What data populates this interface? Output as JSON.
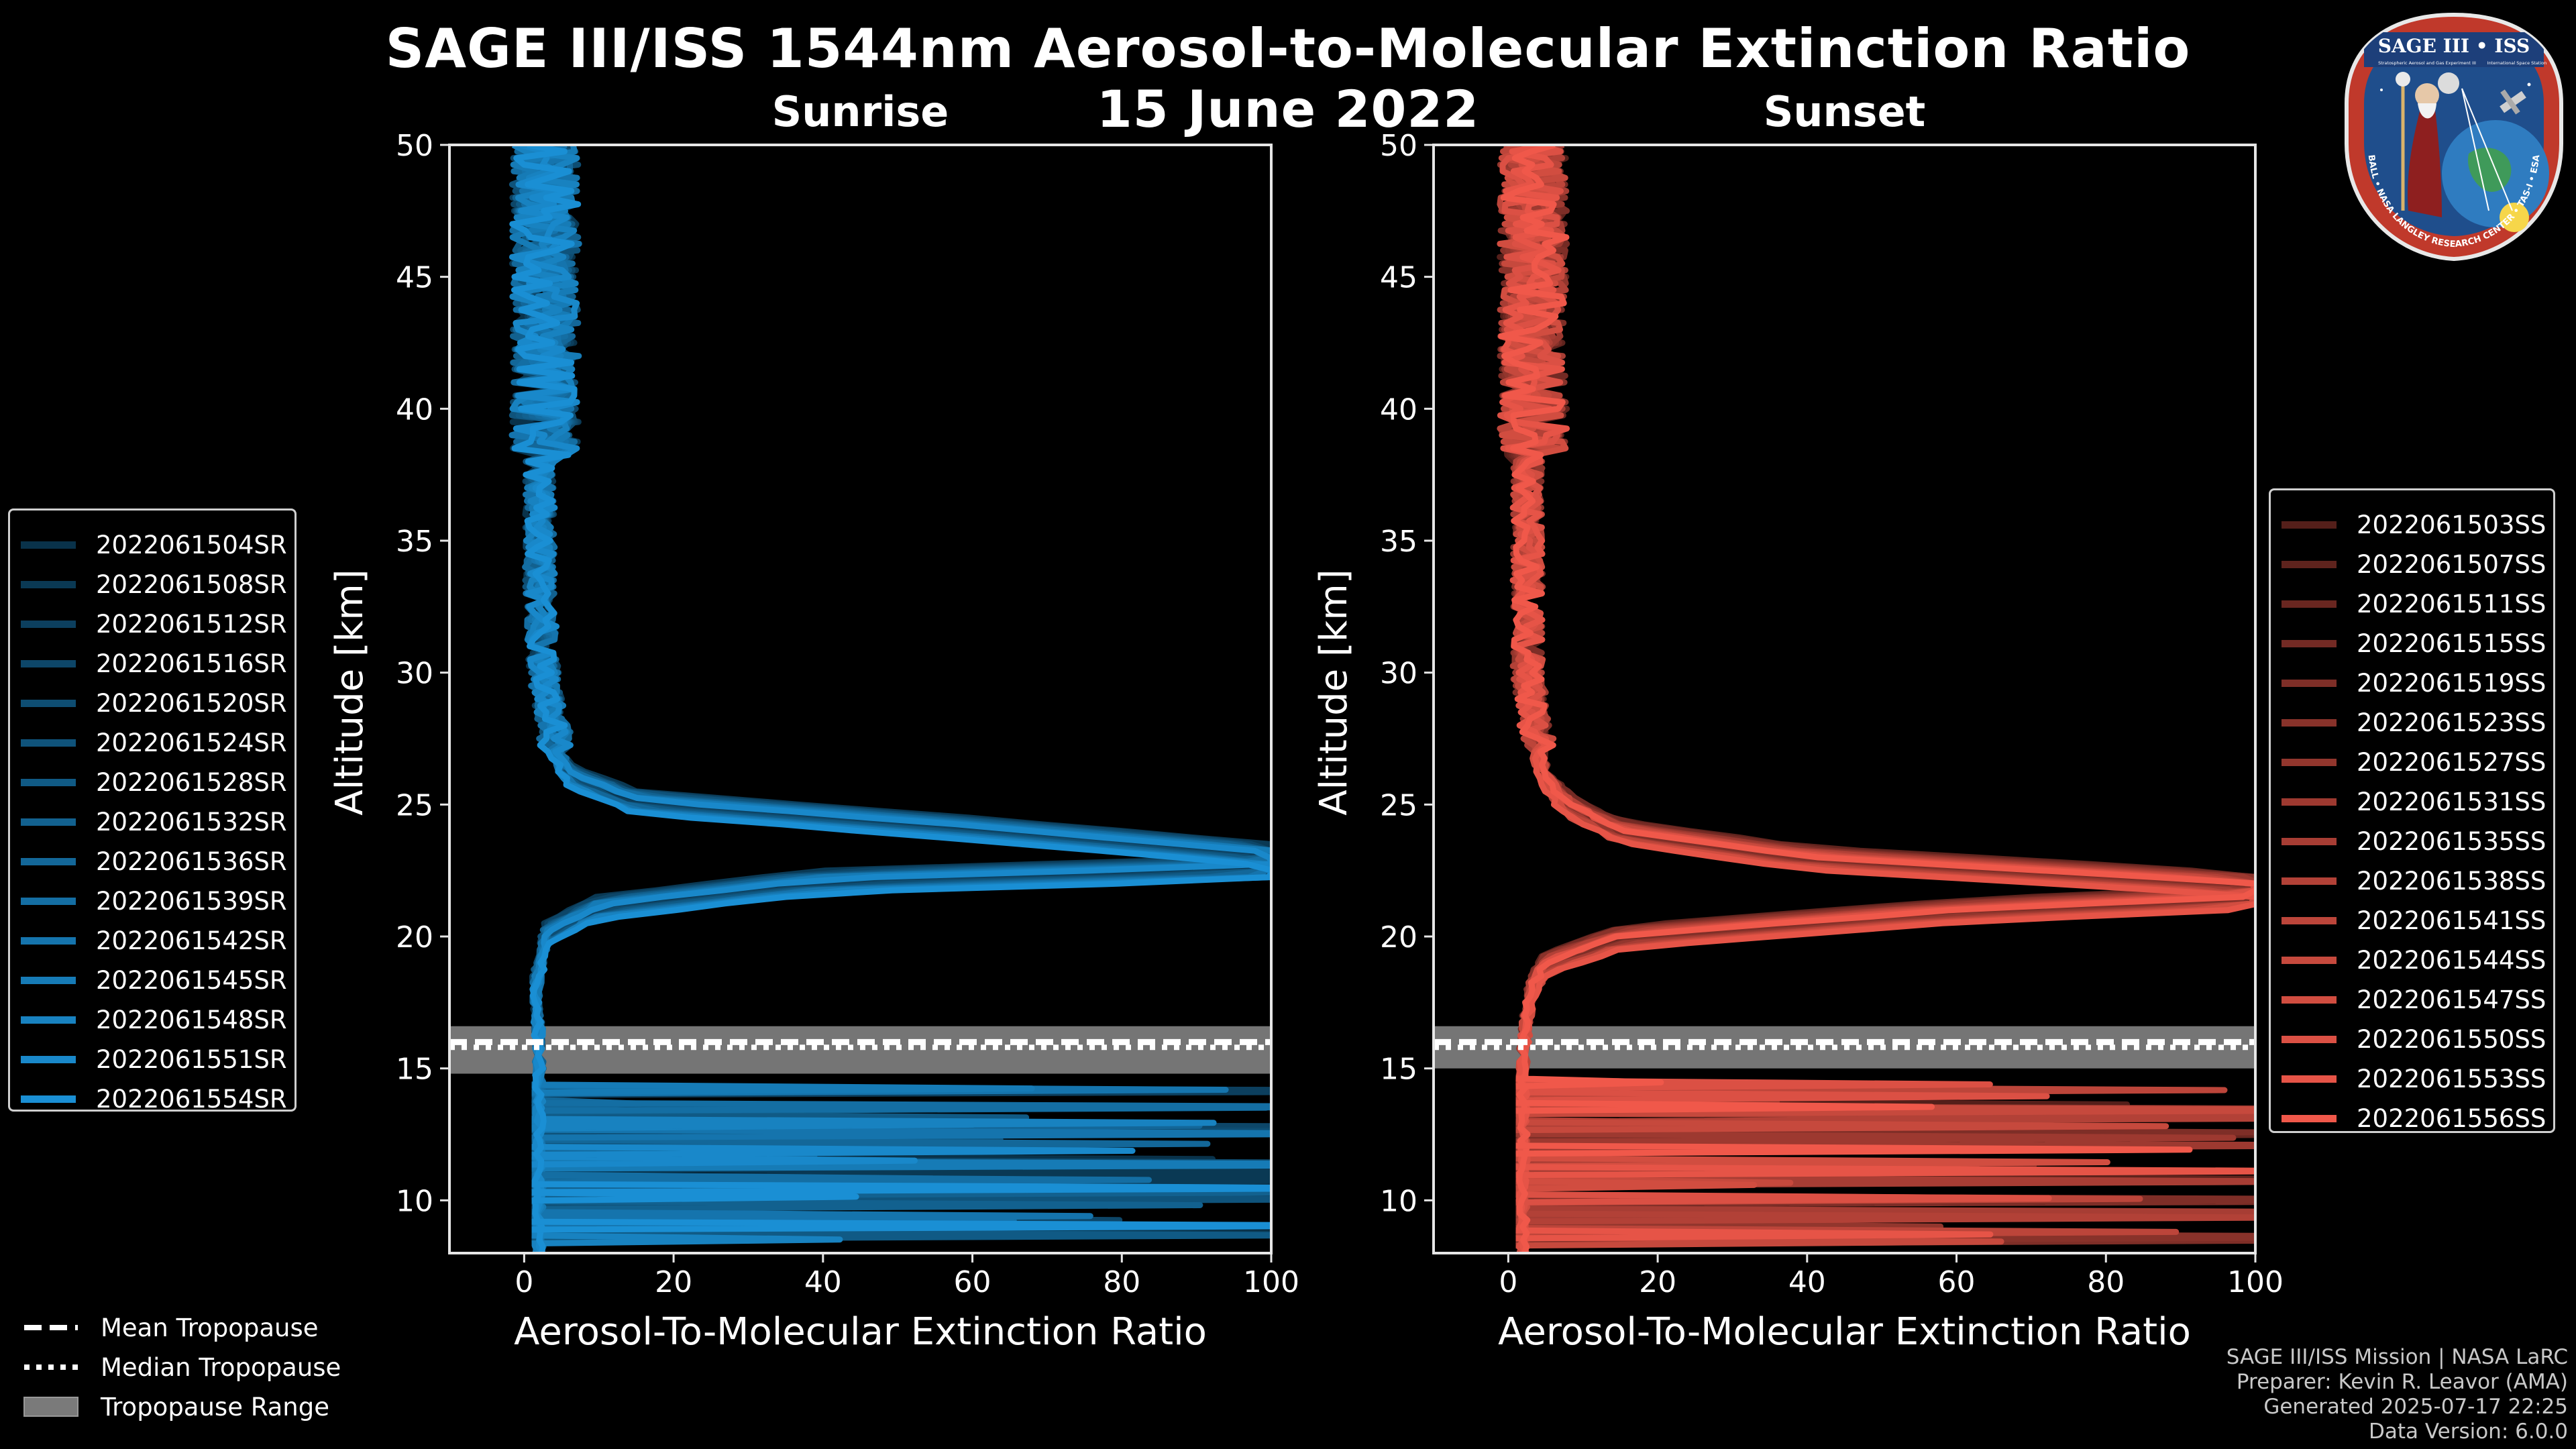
{
  "title": "SAGE III/ISS 1544nm Aerosol-to-Molecular Extinction Ratio",
  "date": "15 June 2022",
  "chart_data": [
    {
      "type": "line",
      "panel": "Sunrise",
      "title": "Sunrise",
      "xlabel": "Aerosol-To-Molecular Extinction Ratio",
      "ylabel": "Altitude [km]",
      "xlim": [
        -10,
        100
      ],
      "ylim": [
        8,
        50
      ],
      "xticks": [
        "0",
        "20",
        "40",
        "60",
        "80",
        "100"
      ],
      "yticks": [
        "10",
        "15",
        "20",
        "25",
        "30",
        "35",
        "40",
        "45",
        "50"
      ],
      "color": "#1a8fd4",
      "tropopause": {
        "mean_km": 16.0,
        "median_km": 15.8,
        "range_km": [
          14.8,
          16.6
        ]
      },
      "profile_shape": {
        "altitudes_km": [
          9,
          12,
          15,
          16,
          18,
          20,
          21,
          22,
          22.5,
          23,
          24,
          25,
          26,
          27,
          28,
          30,
          33,
          36,
          40,
          44,
          48,
          50
        ],
        "values": [
          2,
          2,
          2,
          2,
          1.5,
          3,
          10,
          40,
          100,
          100,
          60,
          15,
          6,
          4,
          3,
          2,
          1.5,
          1.5,
          1.5,
          1.5,
          1.5,
          1.5
        ]
      },
      "series": [
        {
          "name": "2022061504SR"
        },
        {
          "name": "2022061508SR"
        },
        {
          "name": "2022061512SR"
        },
        {
          "name": "2022061516SR"
        },
        {
          "name": "2022061520SR"
        },
        {
          "name": "2022061524SR"
        },
        {
          "name": "2022061528SR"
        },
        {
          "name": "2022061532SR"
        },
        {
          "name": "2022061536SR"
        },
        {
          "name": "2022061539SR"
        },
        {
          "name": "2022061542SR"
        },
        {
          "name": "2022061545SR"
        },
        {
          "name": "2022061548SR"
        },
        {
          "name": "2022061551SR"
        },
        {
          "name": "2022061554SR"
        }
      ]
    },
    {
      "type": "line",
      "panel": "Sunset",
      "title": "Sunset",
      "xlabel": "Aerosol-To-Molecular Extinction Ratio",
      "ylabel": "Altitude [km]",
      "xlim": [
        -10,
        100
      ],
      "ylim": [
        8,
        50
      ],
      "xticks": [
        "0",
        "20",
        "40",
        "60",
        "80",
        "100"
      ],
      "yticks": [
        "10",
        "15",
        "20",
        "25",
        "30",
        "35",
        "40",
        "45",
        "50"
      ],
      "color": "#f0584a",
      "tropopause": {
        "mean_km": 16.0,
        "median_km": 15.8,
        "range_km": [
          15.0,
          16.6
        ]
      },
      "profile_shape": {
        "altitudes_km": [
          9,
          12,
          15,
          16,
          18,
          19,
          20,
          21,
          21.5,
          22,
          23,
          24,
          25,
          26,
          28,
          30,
          33,
          36,
          40,
          44,
          48,
          50
        ],
        "values": [
          2,
          2,
          2,
          2,
          3,
          5,
          15,
          60,
          100,
          100,
          40,
          15,
          8,
          5,
          3,
          2,
          2,
          2,
          2,
          2,
          2,
          2
        ]
      },
      "series": [
        {
          "name": "2022061503SS"
        },
        {
          "name": "2022061507SS"
        },
        {
          "name": "2022061511SS"
        },
        {
          "name": "2022061515SS"
        },
        {
          "name": "2022061519SS"
        },
        {
          "name": "2022061523SS"
        },
        {
          "name": "2022061527SS"
        },
        {
          "name": "2022061531SS"
        },
        {
          "name": "2022061535SS"
        },
        {
          "name": "2022061538SS"
        },
        {
          "name": "2022061541SS"
        },
        {
          "name": "2022061544SS"
        },
        {
          "name": "2022061547SS"
        },
        {
          "name": "2022061550SS"
        },
        {
          "name": "2022061553SS"
        },
        {
          "name": "2022061556SS"
        }
      ]
    }
  ],
  "tropopause_legend": {
    "mean": "Mean Tropopause",
    "median": "Median Tropopause",
    "range": "Tropopause Range"
  },
  "credits": {
    "line1": "SAGE III/ISS Mission | NASA LaRC",
    "line2": "Preparer: Kevin R. Leavor (AMA)",
    "line3": "Generated 2025-07-17 22:25",
    "line4": "Data Version: 6.0.0"
  },
  "badge": {
    "title": "SAGE III • ISS",
    "subtitle": "Stratospheric Aerosol and Gas Experiment III",
    "station": "International Space Station",
    "ring_text": "BALL • NASA LANGLEY RESEARCH CENTER • TAS-I • ESA",
    "colors": {
      "ring": "#c0392b",
      "inner": "#1f4e8c",
      "title_bg": "#1d3f7a"
    }
  }
}
